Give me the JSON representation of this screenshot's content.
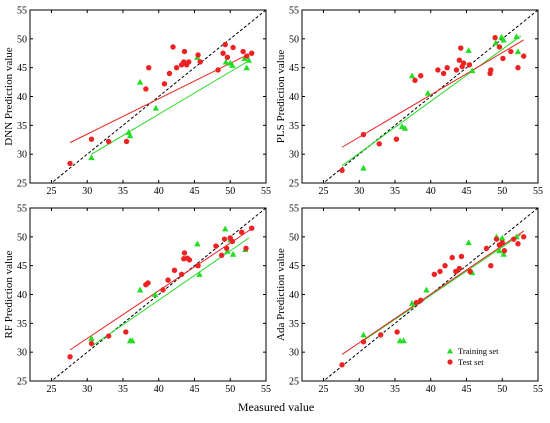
{
  "figure": {
    "xlabel": "Measured value"
  },
  "chart_data": [
    {
      "type": "scatter",
      "panel": "DNN",
      "ylabel": "DNN Prediction value",
      "xlim": [
        22,
        55
      ],
      "ylim": [
        25,
        55
      ],
      "xticks": [
        25,
        30,
        35,
        40,
        45,
        50,
        55
      ],
      "yticks": [
        25,
        30,
        35,
        40,
        45,
        50,
        55
      ],
      "diagonal": true,
      "series": [
        {
          "name": "Training set",
          "marker": "triangle",
          "color": "#22dd22",
          "points": [
            [
              30.6,
              29.4
            ],
            [
              35.8,
              33.8
            ],
            [
              36.0,
              33.2
            ],
            [
              37.4,
              42.5
            ],
            [
              39.6,
              38.0
            ],
            [
              45.4,
              46.8
            ],
            [
              49.4,
              46.0
            ],
            [
              50.0,
              45.8
            ],
            [
              50.3,
              45.4
            ],
            [
              52.0,
              46.6
            ],
            [
              52.3,
              45.0
            ],
            [
              52.6,
              46.3
            ]
          ],
          "fit": [
            [
              30.6,
              30.0
            ],
            [
              52.6,
              46.2
            ]
          ]
        },
        {
          "name": "Test set",
          "marker": "circle",
          "color": "#ee2222",
          "points": [
            [
              27.6,
              28.4
            ],
            [
              30.6,
              32.6
            ],
            [
              33.0,
              32.2
            ],
            [
              35.5,
              32.2
            ],
            [
              38.2,
              41.3
            ],
            [
              38.6,
              45.0
            ],
            [
              40.8,
              42.2
            ],
            [
              41.5,
              44.0
            ],
            [
              42.0,
              48.6
            ],
            [
              42.5,
              45.0
            ],
            [
              43.2,
              45.5
            ],
            [
              43.5,
              46.0
            ],
            [
              43.6,
              47.8
            ],
            [
              43.9,
              45.5
            ],
            [
              44.2,
              46.0
            ],
            [
              45.5,
              47.2
            ],
            [
              45.8,
              46.0
            ],
            [
              48.3,
              44.6
            ],
            [
              49.0,
              47.5
            ],
            [
              49.3,
              49.0
            ],
            [
              49.6,
              46.8
            ],
            [
              50.4,
              48.5
            ],
            [
              51.8,
              47.8
            ],
            [
              52.3,
              47.0
            ],
            [
              53.0,
              47.5
            ]
          ],
          "fit": [
            [
              27.6,
              32.0
            ],
            [
              53.0,
              47.6
            ]
          ]
        }
      ]
    },
    {
      "type": "scatter",
      "panel": "PLS",
      "ylabel": "PLS Prediction value",
      "xlim": [
        22,
        55
      ],
      "ylim": [
        25,
        55
      ],
      "xticks": [
        25,
        30,
        35,
        40,
        45,
        50,
        55
      ],
      "yticks": [
        25,
        30,
        35,
        40,
        45,
        50,
        55
      ],
      "diagonal": true,
      "series": [
        {
          "name": "Training set",
          "marker": "triangle",
          "color": "#22dd22",
          "points": [
            [
              30.6,
              27.6
            ],
            [
              36.0,
              34.8
            ],
            [
              36.4,
              34.5
            ],
            [
              37.4,
              43.6
            ],
            [
              39.6,
              40.6
            ],
            [
              45.3,
              48.0
            ],
            [
              45.8,
              44.5
            ],
            [
              49.1,
              49.3
            ],
            [
              49.9,
              50.3
            ],
            [
              50.2,
              49.8
            ],
            [
              52.0,
              50.4
            ],
            [
              52.2,
              47.8
            ]
          ],
          "fit": [
            [
              27.6,
              28.0
            ],
            [
              52.6,
              50.5
            ]
          ]
        },
        {
          "name": "Test set",
          "marker": "circle",
          "color": "#ee2222",
          "points": [
            [
              27.6,
              27.2
            ],
            [
              30.6,
              33.4
            ],
            [
              32.8,
              31.8
            ],
            [
              35.2,
              32.6
            ],
            [
              37.8,
              42.8
            ],
            [
              38.6,
              43.6
            ],
            [
              41.0,
              44.6
            ],
            [
              41.8,
              44.0
            ],
            [
              42.3,
              45.0
            ],
            [
              43.6,
              44.6
            ],
            [
              44.0,
              46.3
            ],
            [
              44.2,
              48.4
            ],
            [
              44.4,
              45.2
            ],
            [
              44.6,
              45.8
            ],
            [
              45.4,
              45.5
            ],
            [
              48.3,
              44.0
            ],
            [
              48.4,
              44.6
            ],
            [
              49.0,
              50.2
            ],
            [
              49.6,
              48.6
            ],
            [
              50.1,
              46.6
            ],
            [
              51.2,
              47.8
            ],
            [
              52.2,
              45.0
            ],
            [
              53.0,
              47.0
            ]
          ],
          "fit": [
            [
              27.6,
              31.2
            ],
            [
              53.0,
              49.8
            ]
          ]
        }
      ]
    },
    {
      "type": "scatter",
      "panel": "RF",
      "ylabel": "RF Prediction value",
      "xlim": [
        22,
        55
      ],
      "ylim": [
        25,
        55
      ],
      "xticks": [
        25,
        30,
        35,
        40,
        45,
        50,
        55
      ],
      "yticks": [
        25,
        30,
        35,
        40,
        45,
        50,
        55
      ],
      "diagonal": true,
      "series": [
        {
          "name": "Training set",
          "marker": "triangle",
          "color": "#22dd22",
          "points": [
            [
              30.6,
              32.4
            ],
            [
              36.0,
              32.0
            ],
            [
              36.3,
              32.0
            ],
            [
              37.4,
              40.8
            ],
            [
              39.5,
              40.0
            ],
            [
              45.4,
              48.8
            ],
            [
              45.7,
              43.5
            ],
            [
              49.3,
              51.4
            ],
            [
              49.6,
              47.5
            ],
            [
              50.0,
              49.5
            ],
            [
              50.4,
              47.0
            ],
            [
              52.1,
              47.8
            ]
          ],
          "fit": [
            [
              30.6,
              31.0
            ],
            [
              52.6,
              49.8
            ]
          ]
        },
        {
          "name": "Test set",
          "marker": "circle",
          "color": "#ee2222",
          "points": [
            [
              27.6,
              29.2
            ],
            [
              30.6,
              31.5
            ],
            [
              33.0,
              32.8
            ],
            [
              35.4,
              33.5
            ],
            [
              38.2,
              41.7
            ],
            [
              38.5,
              42.0
            ],
            [
              40.6,
              40.8
            ],
            [
              41.3,
              42.5
            ],
            [
              42.2,
              44.2
            ],
            [
              43.2,
              43.5
            ],
            [
              43.5,
              46.2
            ],
            [
              43.6,
              47.2
            ],
            [
              44.0,
              46.3
            ],
            [
              44.3,
              46.0
            ],
            [
              45.5,
              45.0
            ],
            [
              48.0,
              48.4
            ],
            [
              48.8,
              46.8
            ],
            [
              49.2,
              49.6
            ],
            [
              49.5,
              48.0
            ],
            [
              50.0,
              49.8
            ],
            [
              50.3,
              49.2
            ],
            [
              51.6,
              50.8
            ],
            [
              52.2,
              48.0
            ],
            [
              53.0,
              51.5
            ]
          ],
          "fit": [
            [
              27.6,
              30.4
            ],
            [
              53.0,
              51.4
            ]
          ]
        }
      ]
    },
    {
      "type": "scatter",
      "panel": "Ada",
      "ylabel": "Ada Prediction value",
      "xlim": [
        22,
        55
      ],
      "ylim": [
        25,
        55
      ],
      "xticks": [
        25,
        30,
        35,
        40,
        45,
        50,
        55
      ],
      "yticks": [
        25,
        30,
        35,
        40,
        45,
        50,
        55
      ],
      "diagonal": true,
      "legend": "bottom-right",
      "series": [
        {
          "name": "Training set",
          "marker": "triangle",
          "color": "#22dd22",
          "points": [
            [
              30.6,
              33.0
            ],
            [
              35.7,
              32.0
            ],
            [
              36.2,
              32.0
            ],
            [
              37.4,
              38.5
            ],
            [
              39.4,
              40.8
            ],
            [
              45.3,
              49.0
            ],
            [
              45.8,
              43.8
            ],
            [
              49.2,
              50.0
            ],
            [
              49.6,
              47.6
            ],
            [
              50.0,
              49.8
            ],
            [
              50.2,
              47.0
            ],
            [
              52.0,
              50.0
            ]
          ],
          "fit": [
            [
              30.6,
              32.0
            ],
            [
              52.6,
              50.4
            ]
          ]
        },
        {
          "name": "Test set",
          "marker": "circle",
          "color": "#ee2222",
          "points": [
            [
              27.6,
              27.8
            ],
            [
              30.6,
              31.8
            ],
            [
              33.0,
              33.0
            ],
            [
              35.3,
              33.5
            ],
            [
              38.0,
              38.6
            ],
            [
              38.6,
              39.0
            ],
            [
              40.5,
              43.5
            ],
            [
              41.3,
              44.0
            ],
            [
              42.0,
              45.0
            ],
            [
              43.0,
              46.4
            ],
            [
              43.5,
              44.0
            ],
            [
              44.0,
              44.5
            ],
            [
              44.3,
              46.6
            ],
            [
              45.5,
              44.0
            ],
            [
              47.8,
              48.0
            ],
            [
              48.4,
              45.0
            ],
            [
              49.2,
              49.6
            ],
            [
              49.6,
              48.6
            ],
            [
              50.0,
              49.0
            ],
            [
              50.3,
              47.6
            ],
            [
              51.6,
              49.6
            ],
            [
              52.2,
              48.8
            ],
            [
              53.0,
              50.0
            ]
          ],
          "fit": [
            [
              27.6,
              29.6
            ],
            [
              53.0,
              51.0
            ]
          ]
        }
      ]
    }
  ]
}
